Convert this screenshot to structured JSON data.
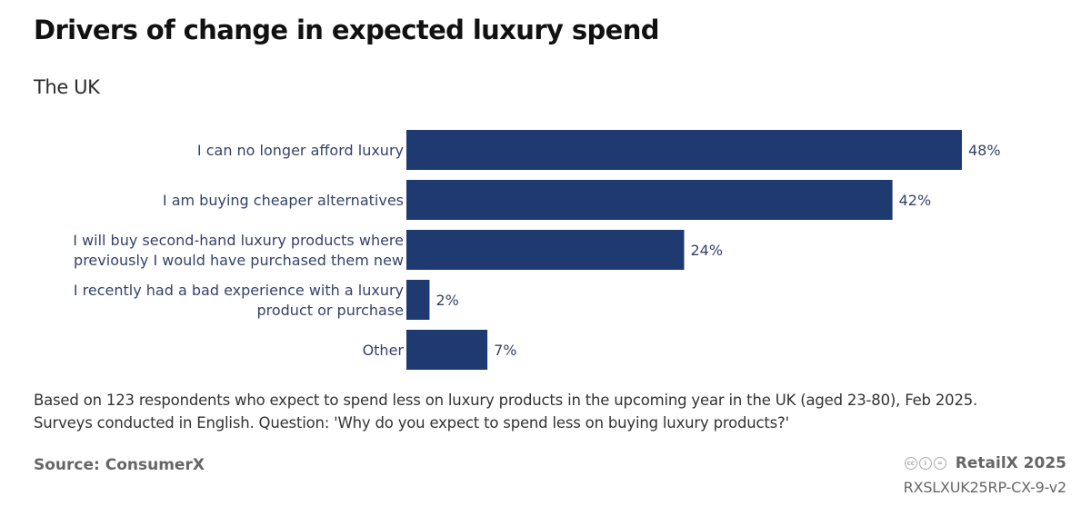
{
  "chart_data": {
    "type": "bar",
    "orientation": "horizontal",
    "title": "Drivers of change in expected luxury spend",
    "subtitle": "The UK",
    "categories": [
      [
        "I can no longer afford luxury"
      ],
      [
        "I am buying cheaper alternatives"
      ],
      [
        "I will buy second-hand luxury products where",
        "previously I would have purchased them new"
      ],
      [
        "I recently had a bad experience with a luxury",
        "product or purchase"
      ],
      [
        "Other"
      ]
    ],
    "values": [
      48,
      42,
      24,
      2,
      7
    ],
    "value_labels": [
      "48%",
      "42%",
      "24%",
      "2%",
      "7%"
    ],
    "unit": "%",
    "xlim": [
      0,
      48
    ],
    "xlabel": "",
    "ylabel": "",
    "grid": false,
    "legend": "none",
    "bar_color": "#1f3a70"
  },
  "footer": {
    "note_line1": "Based on 123 respondents who expect to spend less on luxury products in the upcoming year in the UK (aged 23-80), Feb 2025.",
    "note_line2": "Surveys conducted in English. Question: 'Why do you expect to spend less on buying luxury products?'",
    "source": "Source: ConsumerX",
    "brand": "RetailX 2025",
    "code": "RXSLXUK25RP-CX-9-v2",
    "license_icons": [
      "cc",
      "i",
      "="
    ]
  }
}
